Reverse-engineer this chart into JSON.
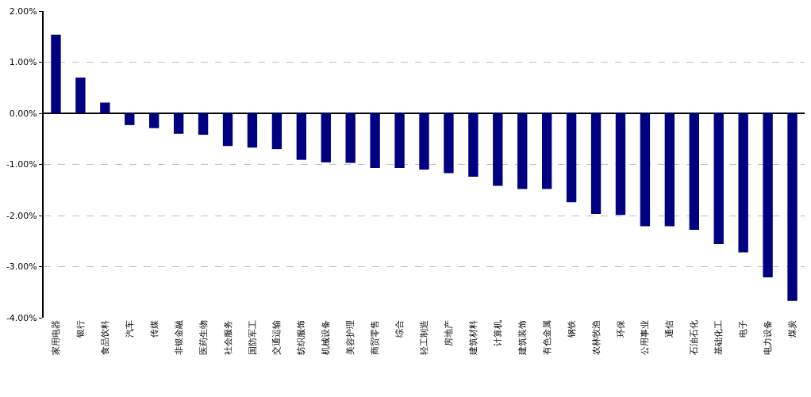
{
  "chart_data": {
    "type": "bar",
    "categories": [
      "家用电器",
      "银行",
      "食品饮料",
      "汽车",
      "传媒",
      "非银金融",
      "医药生物",
      "社会服务",
      "国防军工",
      "交通运输",
      "纺织服饰",
      "机械设备",
      "美容护理",
      "商贸零售",
      "综合",
      "轻工制造",
      "房地产",
      "建筑材料",
      "计算机",
      "建筑装饰",
      "有色金属",
      "钢铁",
      "农林牧渔",
      "环保",
      "公用事业",
      "通信",
      "石油石化",
      "基础化工",
      "电子",
      "电力设备",
      "煤炭"
    ],
    "values": [
      1.54,
      0.7,
      0.21,
      -0.23,
      -0.29,
      -0.4,
      -0.42,
      -0.64,
      -0.67,
      -0.7,
      -0.91,
      -0.96,
      -0.97,
      -1.07,
      -1.07,
      -1.1,
      -1.17,
      -1.24,
      -1.42,
      -1.48,
      -1.48,
      -1.74,
      -1.97,
      -1.99,
      -2.21,
      -2.21,
      -2.28,
      -2.56,
      -2.72,
      -3.21,
      -3.67
    ],
    "color": "#000080",
    "ylim": [
      -4,
      2
    ],
    "yticks": [
      {
        "value": -4,
        "label": "-4.00%"
      },
      {
        "value": -3,
        "label": "-3.00%"
      },
      {
        "value": -2,
        "label": "-2.00%"
      },
      {
        "value": -1,
        "label": "-1.00%"
      },
      {
        "value": 0,
        "label": "0.00%"
      },
      {
        "value": 1,
        "label": "1.00%"
      },
      {
        "value": 2,
        "label": "2.00%"
      }
    ],
    "grid": "y"
  }
}
